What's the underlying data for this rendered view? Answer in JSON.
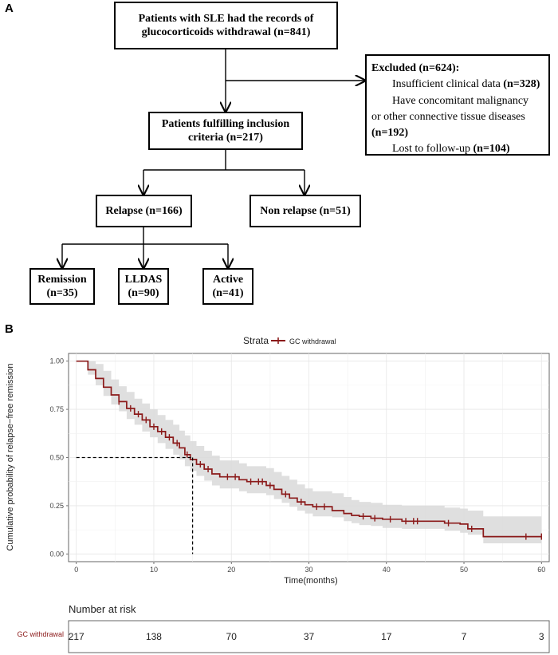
{
  "panel_a_label": "A",
  "panel_b_label": "B",
  "flowchart": {
    "top_box": [
      "Patients with SLE had the records of",
      "glucocorticoids withdrawal (n=841)"
    ],
    "excluded": {
      "title": "Excluded (n=624):",
      "line1_text": "Insufficient clinical data ",
      "line1_count": "(n=328)",
      "line2_text": "Have concomitant malignancy",
      "line3_text": "or other connective tissue diseases",
      "line4_count": "(n=192)",
      "line5_text": "Lost to follow-up ",
      "line5_count": "(n=104)"
    },
    "inclusion_box": [
      "Patients fulfilling inclusion",
      "criteria (n=217)"
    ],
    "relapse_box": "Relapse (n=166)",
    "non_relapse_box": "Non relapse (n=51)",
    "remission_box": [
      "Remission",
      "(n=35)"
    ],
    "lldas_box": [
      "LLDAS",
      "(n=90)"
    ],
    "active_box": [
      "Active",
      "(n=41)"
    ]
  },
  "chart_data": {
    "type": "line",
    "subtype": "kaplan-meier",
    "legend_title": "Strata",
    "legend_entry": "GC withdrawal",
    "xlabel": "Time(months)",
    "ylabel": "Cumulative probability of relapse−free remission",
    "xlim": [
      -1,
      61
    ],
    "ylim": [
      -0.04,
      1.04
    ],
    "x_ticks": [
      0,
      10,
      20,
      30,
      40,
      50,
      60
    ],
    "y_ticks": [
      0.0,
      0.25,
      0.5,
      0.75,
      1.0
    ],
    "y_tick_labels": [
      "0.00",
      "0.25",
      "0.50",
      "0.75",
      "1.00"
    ],
    "median_survival": {
      "x": 15,
      "y": 0.5
    },
    "series_color": "#8b1a1a",
    "ci_color": "#d9d9d9",
    "survival": [
      [
        0,
        1.0
      ],
      [
        1.5,
        1.0
      ],
      [
        1.5,
        0.955
      ],
      [
        2.5,
        0.955
      ],
      [
        2.5,
        0.91
      ],
      [
        3.5,
        0.91
      ],
      [
        3.5,
        0.865
      ],
      [
        4.5,
        0.865
      ],
      [
        4.5,
        0.825
      ],
      [
        5.5,
        0.825
      ],
      [
        5.5,
        0.79
      ],
      [
        6.5,
        0.79
      ],
      [
        6.5,
        0.755
      ],
      [
        7.5,
        0.755
      ],
      [
        7.5,
        0.725
      ],
      [
        8.5,
        0.725
      ],
      [
        8.5,
        0.695
      ],
      [
        9.5,
        0.695
      ],
      [
        9.5,
        0.66
      ],
      [
        10.5,
        0.66
      ],
      [
        10.5,
        0.635
      ],
      [
        11.5,
        0.635
      ],
      [
        11.5,
        0.605
      ],
      [
        12.5,
        0.605
      ],
      [
        12.5,
        0.575
      ],
      [
        13.3,
        0.575
      ],
      [
        13.3,
        0.55
      ],
      [
        14,
        0.55
      ],
      [
        14,
        0.515
      ],
      [
        14.7,
        0.515
      ],
      [
        14.7,
        0.49
      ],
      [
        15.5,
        0.49
      ],
      [
        15.5,
        0.465
      ],
      [
        16.5,
        0.465
      ],
      [
        16.5,
        0.44
      ],
      [
        17.5,
        0.44
      ],
      [
        17.5,
        0.415
      ],
      [
        18.5,
        0.415
      ],
      [
        18.5,
        0.4
      ],
      [
        21,
        0.4
      ],
      [
        21,
        0.385
      ],
      [
        22,
        0.385
      ],
      [
        22,
        0.375
      ],
      [
        24.5,
        0.375
      ],
      [
        24.5,
        0.355
      ],
      [
        25.5,
        0.355
      ],
      [
        25.5,
        0.335
      ],
      [
        26.5,
        0.335
      ],
      [
        26.5,
        0.31
      ],
      [
        27.5,
        0.31
      ],
      [
        27.5,
        0.29
      ],
      [
        28.5,
        0.29
      ],
      [
        28.5,
        0.27
      ],
      [
        29.5,
        0.27
      ],
      [
        29.5,
        0.255
      ],
      [
        30.5,
        0.255
      ],
      [
        30.5,
        0.245
      ],
      [
        33,
        0.245
      ],
      [
        33,
        0.225
      ],
      [
        34.5,
        0.225
      ],
      [
        34.5,
        0.21
      ],
      [
        35.5,
        0.21
      ],
      [
        35.5,
        0.2
      ],
      [
        36.5,
        0.2
      ],
      [
        36.5,
        0.195
      ],
      [
        38,
        0.195
      ],
      [
        38,
        0.185
      ],
      [
        39.5,
        0.185
      ],
      [
        39.5,
        0.18
      ],
      [
        42,
        0.18
      ],
      [
        42,
        0.17
      ],
      [
        47.5,
        0.17
      ],
      [
        47.5,
        0.16
      ],
      [
        49.5,
        0.16
      ],
      [
        49.5,
        0.155
      ],
      [
        50.5,
        0.155
      ],
      [
        50.5,
        0.13
      ],
      [
        52.5,
        0.13
      ],
      [
        52.5,
        0.09
      ],
      [
        60,
        0.09
      ]
    ],
    "ci_upper": [
      [
        0,
        1.0
      ],
      [
        1.5,
        1.0
      ],
      [
        2.5,
        0.985
      ],
      [
        3.5,
        0.95
      ],
      [
        4.5,
        0.905
      ],
      [
        5.5,
        0.87
      ],
      [
        6.5,
        0.84
      ],
      [
        7.5,
        0.805
      ],
      [
        8.5,
        0.78
      ],
      [
        9.5,
        0.75
      ],
      [
        10.5,
        0.72
      ],
      [
        11.5,
        0.695
      ],
      [
        12.5,
        0.67
      ],
      [
        13.3,
        0.64
      ],
      [
        14,
        0.615
      ],
      [
        14.7,
        0.585
      ],
      [
        15.5,
        0.56
      ],
      [
        16.5,
        0.535
      ],
      [
        17.5,
        0.51
      ],
      [
        18.5,
        0.485
      ],
      [
        21,
        0.47
      ],
      [
        22,
        0.455
      ],
      [
        24.5,
        0.445
      ],
      [
        25.5,
        0.425
      ],
      [
        26.5,
        0.405
      ],
      [
        27.5,
        0.385
      ],
      [
        28.5,
        0.36
      ],
      [
        29.5,
        0.34
      ],
      [
        30.5,
        0.325
      ],
      [
        33,
        0.315
      ],
      [
        34.5,
        0.295
      ],
      [
        35.5,
        0.28
      ],
      [
        36.5,
        0.27
      ],
      [
        38,
        0.265
      ],
      [
        39.5,
        0.255
      ],
      [
        42,
        0.25
      ],
      [
        47.5,
        0.24
      ],
      [
        49.5,
        0.235
      ],
      [
        50.5,
        0.225
      ],
      [
        52.5,
        0.195
      ],
      [
        60,
        0.15
      ]
    ],
    "ci_lower": [
      [
        0,
        1.0
      ],
      [
        1.5,
        0.93
      ],
      [
        2.5,
        0.875
      ],
      [
        3.5,
        0.82
      ],
      [
        4.5,
        0.775
      ],
      [
        5.5,
        0.74
      ],
      [
        6.5,
        0.7
      ],
      [
        7.5,
        0.67
      ],
      [
        8.5,
        0.635
      ],
      [
        9.5,
        0.605
      ],
      [
        10.5,
        0.575
      ],
      [
        11.5,
        0.545
      ],
      [
        12.5,
        0.515
      ],
      [
        13.3,
        0.49
      ],
      [
        14,
        0.455
      ],
      [
        14.7,
        0.43
      ],
      [
        15.5,
        0.405
      ],
      [
        16.5,
        0.38
      ],
      [
        17.5,
        0.355
      ],
      [
        18.5,
        0.34
      ],
      [
        21,
        0.325
      ],
      [
        22,
        0.315
      ],
      [
        24.5,
        0.305
      ],
      [
        25.5,
        0.285
      ],
      [
        26.5,
        0.265
      ],
      [
        27.5,
        0.245
      ],
      [
        28.5,
        0.225
      ],
      [
        29.5,
        0.21
      ],
      [
        30.5,
        0.195
      ],
      [
        33,
        0.19
      ],
      [
        34.5,
        0.17
      ],
      [
        35.5,
        0.16
      ],
      [
        36.5,
        0.15
      ],
      [
        38,
        0.145
      ],
      [
        39.5,
        0.135
      ],
      [
        42,
        0.13
      ],
      [
        47.5,
        0.12
      ],
      [
        49.5,
        0.11
      ],
      [
        50.5,
        0.1
      ],
      [
        52.5,
        0.055
      ],
      [
        60,
        0.05
      ]
    ],
    "censor_marks": [
      [
        5.5,
        0.79
      ],
      [
        7,
        0.755
      ],
      [
        8,
        0.725
      ],
      [
        9,
        0.695
      ],
      [
        10,
        0.66
      ],
      [
        11,
        0.635
      ],
      [
        12,
        0.605
      ],
      [
        13,
        0.575
      ],
      [
        14.3,
        0.515
      ],
      [
        16,
        0.465
      ],
      [
        17,
        0.44
      ],
      [
        19.5,
        0.4
      ],
      [
        20.5,
        0.4
      ],
      [
        22.5,
        0.375
      ],
      [
        23.5,
        0.375
      ],
      [
        24,
        0.375
      ],
      [
        25,
        0.355
      ],
      [
        27,
        0.31
      ],
      [
        29,
        0.27
      ],
      [
        31,
        0.245
      ],
      [
        32,
        0.245
      ],
      [
        37,
        0.195
      ],
      [
        38.5,
        0.185
      ],
      [
        40.5,
        0.18
      ],
      [
        42.5,
        0.17
      ],
      [
        43.5,
        0.17
      ],
      [
        44,
        0.17
      ],
      [
        48,
        0.16
      ],
      [
        51,
        0.13
      ],
      [
        58,
        0.09
      ],
      [
        60,
        0.09
      ]
    ],
    "risk_table": {
      "title": "Number at risk",
      "strata_label": "GC withdrawal",
      "times": [
        0,
        10,
        20,
        30,
        40,
        50,
        60
      ],
      "counts": [
        "217",
        "138",
        "70",
        "37",
        "17",
        "7",
        "3"
      ]
    }
  }
}
